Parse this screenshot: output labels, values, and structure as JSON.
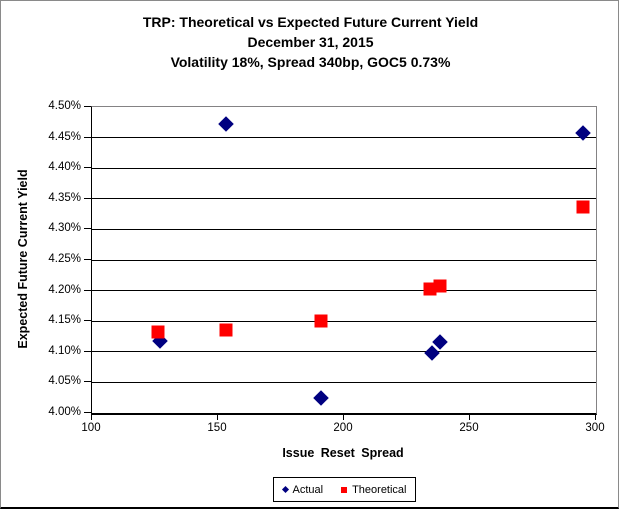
{
  "title": {
    "line1": "TRP: Theoretical vs Expected Future Current Yield",
    "line2": "December 31, 2015",
    "line3": "Volatility 18%, Spread 340bp, GOC5 0.73%"
  },
  "chart_data": {
    "type": "scatter",
    "xlabel": "Issue Reset Spread",
    "ylabel": "Expected Future Current Yield",
    "xlim": [
      100,
      300
    ],
    "ylim": [
      4.0,
      4.5
    ],
    "x_ticks": [
      100,
      150,
      200,
      250,
      300
    ],
    "y_ticks": [
      4.0,
      4.05,
      4.1,
      4.15,
      4.2,
      4.25,
      4.3,
      4.35,
      4.4,
      4.45,
      4.5
    ],
    "y_tick_format": "percent2",
    "grid": "horizontal",
    "legend_position": "bottom-center",
    "series": [
      {
        "name": "Actual",
        "marker": "diamond",
        "color": "#000080",
        "points": [
          [
            127,
            4.117
          ],
          [
            153,
            4.472
          ],
          [
            191,
            4.025
          ],
          [
            235,
            4.098
          ],
          [
            238,
            4.116
          ],
          [
            295,
            4.458
          ]
        ]
      },
      {
        "name": "Theoretical",
        "marker": "square",
        "color": "#FF0000",
        "points": [
          [
            126,
            4.132
          ],
          [
            153,
            4.136
          ],
          [
            191,
            4.151
          ],
          [
            234,
            4.203
          ],
          [
            238,
            4.208
          ],
          [
            295,
            4.337
          ]
        ]
      }
    ]
  }
}
